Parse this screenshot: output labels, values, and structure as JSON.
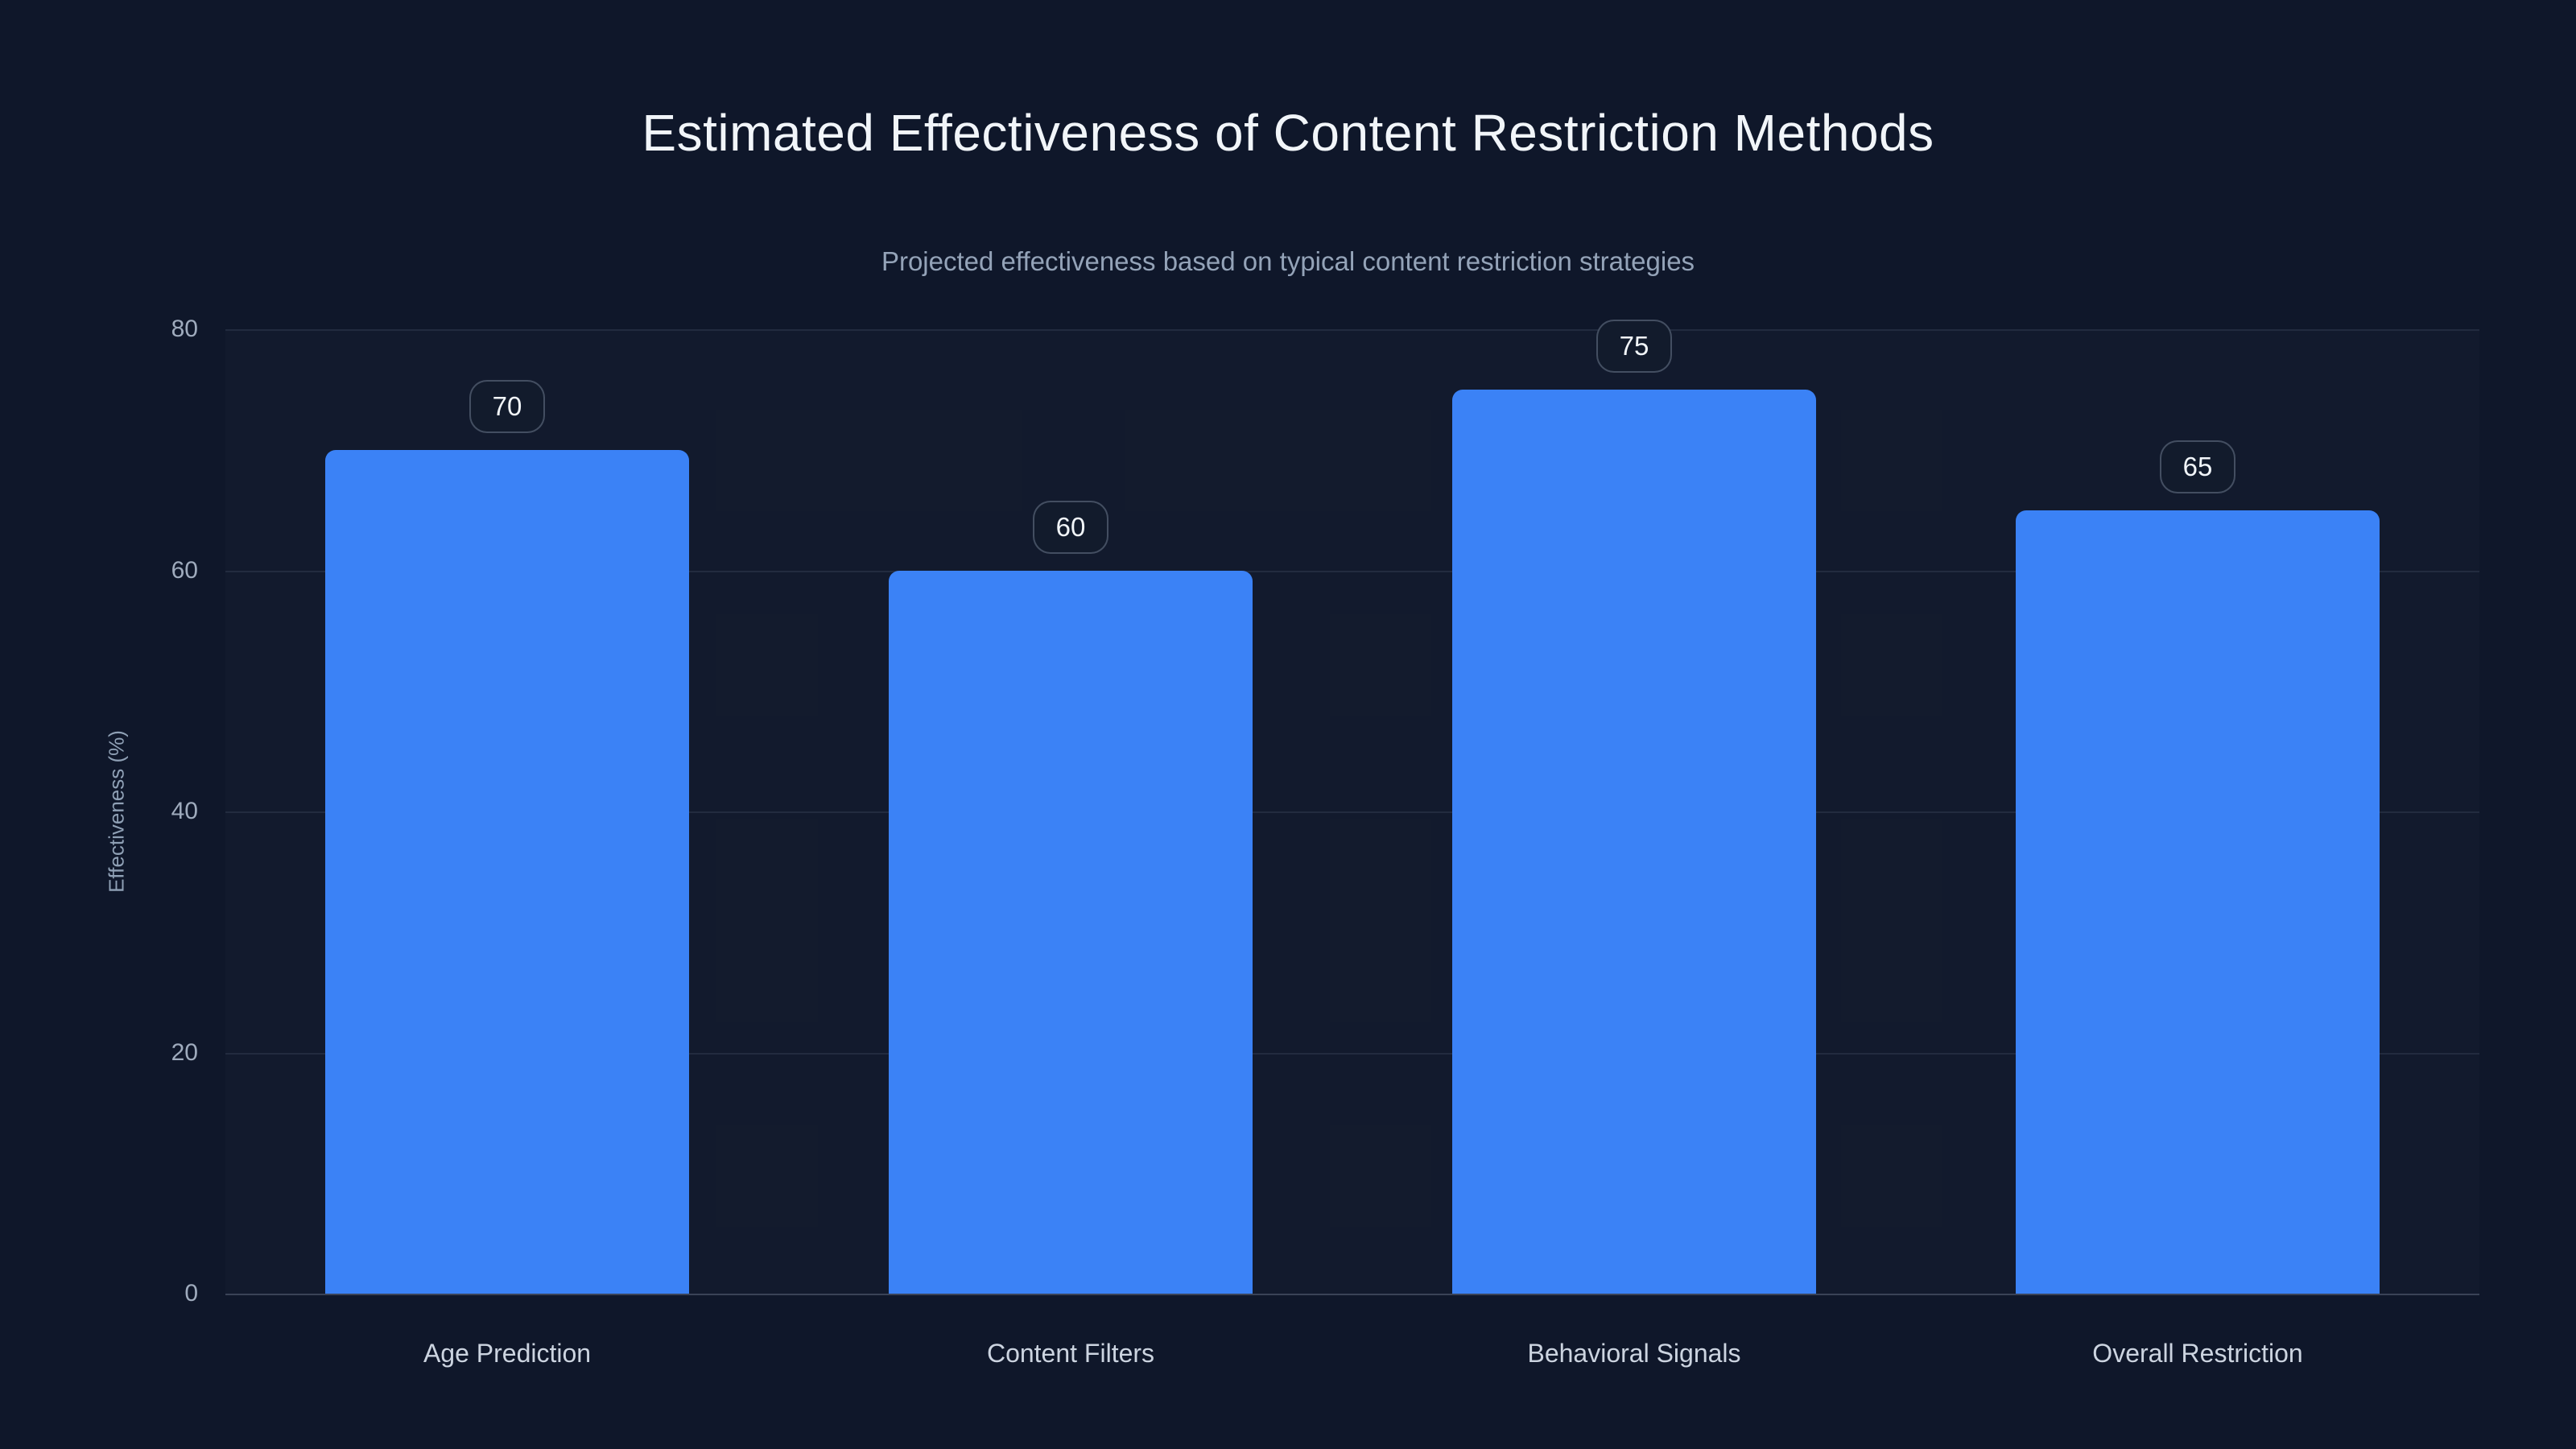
{
  "title": "Estimated Effectiveness of Content Restriction Methods",
  "subtitle": "Projected effectiveness based on typical content restriction strategies",
  "chart_data": {
    "type": "bar",
    "title": "Estimated Effectiveness of Content Restriction Methods",
    "subtitle": "Projected effectiveness based on typical content restriction strategies",
    "categories": [
      "Age Prediction",
      "Content Filters",
      "Behavioral Signals",
      "Overall Restriction"
    ],
    "values": [
      70,
      60,
      75,
      65
    ],
    "data_labels": [
      "70",
      "60",
      "75",
      "65"
    ],
    "xlabel": "",
    "ylabel": "Effectiveness (%)",
    "ylim": [
      0,
      80
    ],
    "yticks": [
      0,
      20,
      40,
      60,
      80
    ],
    "grid": true,
    "legend": false,
    "bar_color": "#3b82f6",
    "background_color": "#0f172a",
    "title_color": "#f1f5f9",
    "subtitle_color": "#94a3b8",
    "badge_border_color": "#4b5a72",
    "badge_text_color": "#f1f5f9"
  },
  "y_axis": {
    "label": "Effectiveness (%)",
    "ticks": {
      "t80": "80",
      "t60": "60",
      "t40": "40",
      "t20": "20",
      "t0": "0"
    }
  },
  "bars": [
    {
      "label": "Age Prediction",
      "value": 70,
      "badge": "70"
    },
    {
      "label": "Content Filters",
      "value": 60,
      "badge": "60"
    },
    {
      "label": "Behavioral Signals",
      "value": 75,
      "badge": "75"
    },
    {
      "label": "Overall Restriction",
      "value": 65,
      "badge": "65"
    }
  ]
}
